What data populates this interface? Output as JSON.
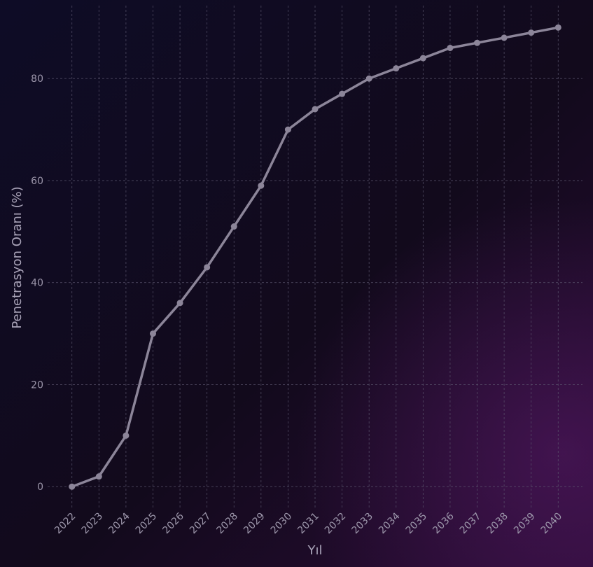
{
  "chart_data": {
    "type": "line",
    "x_label": "Yıl",
    "y_label": "Penetrasyon Oranı (%)",
    "x": [
      2022,
      2023,
      2024,
      2025,
      2026,
      2027,
      2028,
      2029,
      2030,
      2031,
      2032,
      2033,
      2034,
      2035,
      2036,
      2037,
      2038,
      2039,
      2040
    ],
    "series": [
      {
        "color": "#8c8599",
        "values": [
          0,
          2,
          10,
          30,
          36,
          43,
          51,
          59,
          70,
          74,
          77,
          80,
          82,
          84,
          86,
          87,
          88,
          89,
          90
        ]
      }
    ],
    "xlim": [
      2021.1,
      2040.9
    ],
    "xticks": [
      2022,
      2023,
      2024,
      2025,
      2026,
      2027,
      2028,
      2029,
      2030,
      2031,
      2032,
      2033,
      2034,
      2035,
      2036,
      2037,
      2038,
      2039,
      2040
    ],
    "ylim": [
      -4.5,
      94.3
    ],
    "yticks": [
      0,
      20,
      40,
      60,
      80
    ],
    "grid": true
  }
}
